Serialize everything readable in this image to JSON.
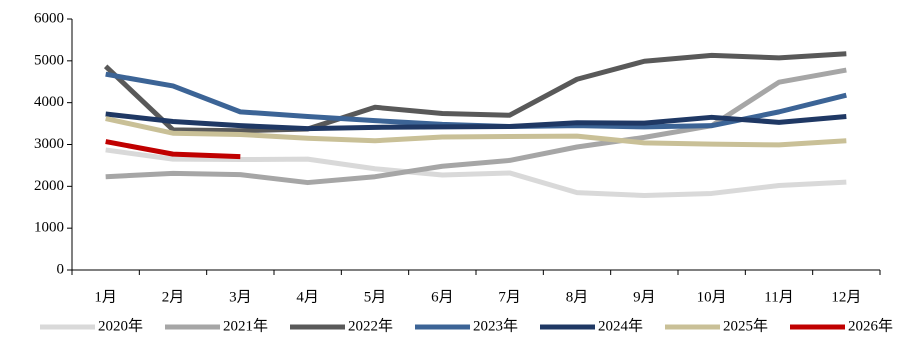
{
  "chart_data": {
    "type": "line",
    "categories": [
      "1月",
      "2月",
      "3月",
      "4月",
      "5月",
      "6月",
      "7月",
      "8月",
      "9月",
      "10月",
      "11月",
      "12月"
    ],
    "ylim": [
      0,
      6000
    ],
    "yticks": [
      0,
      1000,
      2000,
      3000,
      4000,
      5000,
      6000
    ],
    "legend": "bottom",
    "series": [
      {
        "name": "2020年",
        "color": "#d9d9d9",
        "values": [
          2870,
          2650,
          2640,
          2650,
          2420,
          2270,
          2320,
          1850,
          1780,
          1830,
          2020,
          2100
        ]
      },
      {
        "name": "2021年",
        "color": "#a6a6a6",
        "values": [
          2230,
          2310,
          2280,
          2090,
          2230,
          2480,
          2620,
          2940,
          3170,
          3450,
          4490,
          4780
        ]
      },
      {
        "name": "2022年",
        "color": "#595959",
        "values": [
          4870,
          3350,
          3330,
          3370,
          3890,
          3740,
          3700,
          4560,
          4990,
          5130,
          5070,
          5170
        ]
      },
      {
        "name": "2023年",
        "color": "#3c6496",
        "values": [
          4680,
          4400,
          3780,
          3670,
          3570,
          3480,
          3430,
          3450,
          3420,
          3450,
          3780,
          4180
        ]
      },
      {
        "name": "2024年",
        "color": "#1f3864",
        "values": [
          3730,
          3550,
          3450,
          3380,
          3410,
          3420,
          3430,
          3520,
          3510,
          3650,
          3530,
          3670
        ]
      },
      {
        "name": "2025年",
        "color": "#c9c097",
        "values": [
          3620,
          3270,
          3240,
          3150,
          3090,
          3180,
          3190,
          3200,
          3040,
          3010,
          2990,
          3090
        ]
      },
      {
        "name": "2026年",
        "color": "#c00000",
        "values": [
          3070,
          2770,
          2710,
          null,
          null,
          null,
          null,
          null,
          null,
          null,
          null,
          null
        ]
      }
    ]
  }
}
